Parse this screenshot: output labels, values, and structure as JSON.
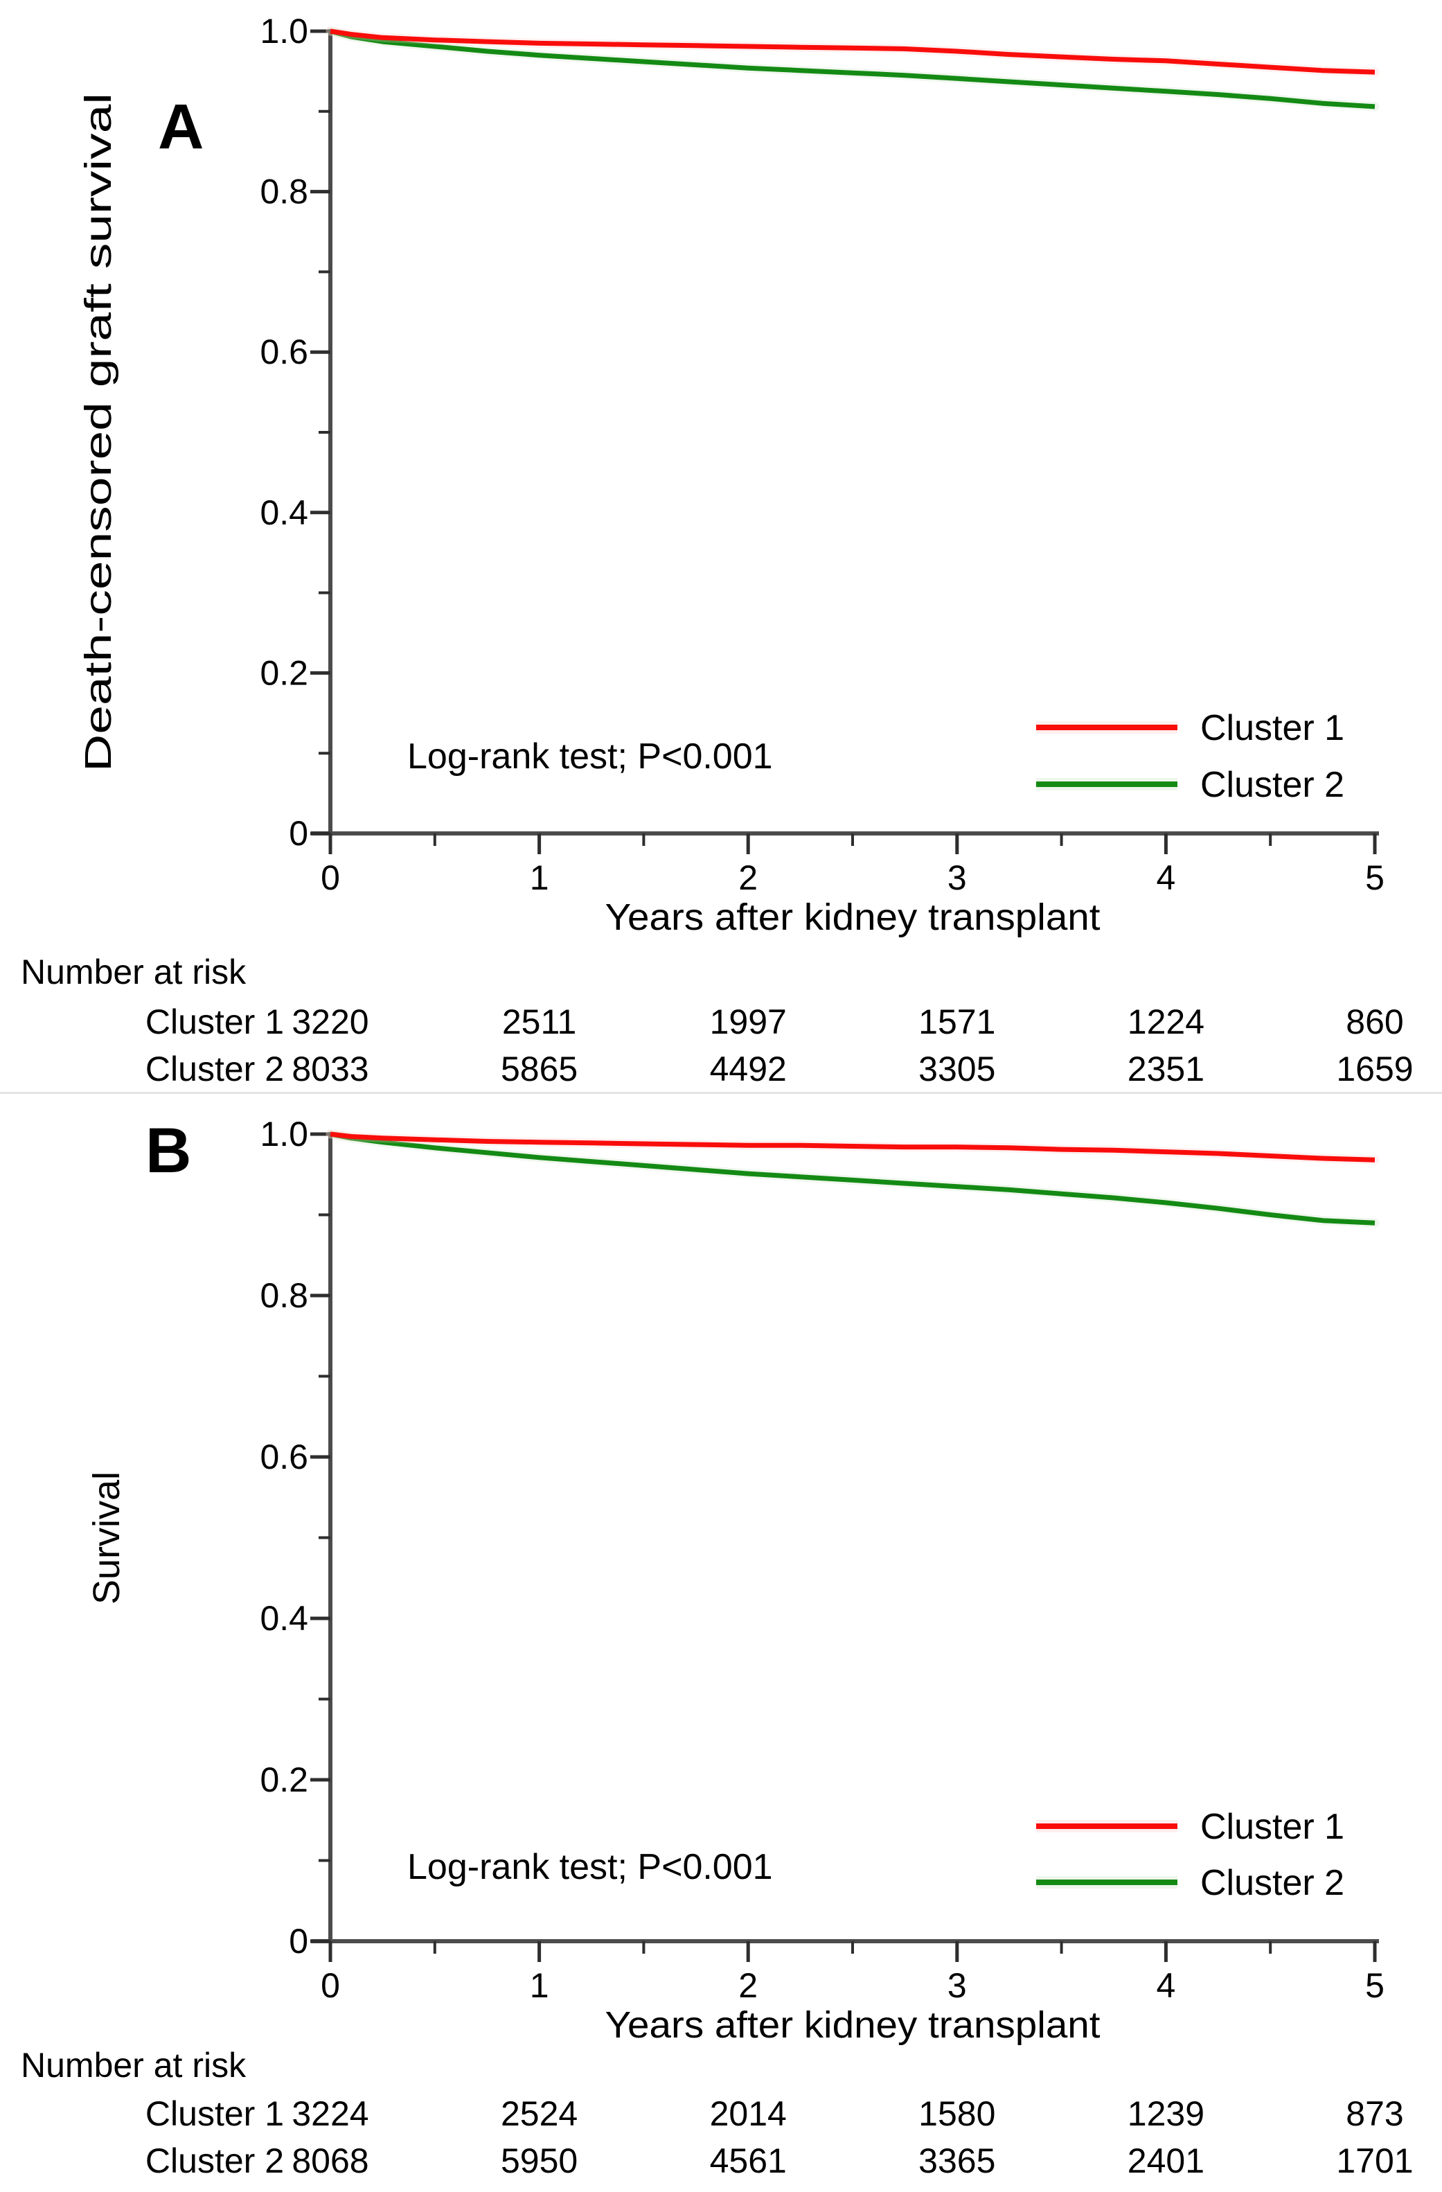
{
  "figure_type": "kaplan-meier-survival-figure",
  "chart_data": [
    {
      "type": "line",
      "panel_label": "A",
      "title": "",
      "xlabel": "Years after kidney transplant",
      "ylabel": "Death-censored graft survival",
      "annotation": "Log-rank test; P<0.001",
      "xlim": [
        0,
        5
      ],
      "ylim": [
        0,
        1
      ],
      "x_ticks": [
        0,
        1,
        2,
        3,
        4,
        5
      ],
      "x_tick_labels": [
        "0",
        "1",
        "2",
        "3",
        "4",
        "5"
      ],
      "y_ticks": [
        1.0,
        0.8,
        0.6,
        0.4,
        0.2,
        0
      ],
      "y_tick_labels": [
        "1.0",
        "0.8",
        "0.6",
        "0.4",
        "0.2",
        "0"
      ],
      "grid": false,
      "legend_position": "lower-right",
      "series": [
        {
          "name": "Cluster 1",
          "color": "#f90d0b",
          "halo": "#ffc6c6",
          "x": [
            0,
            0.1,
            0.25,
            0.5,
            0.75,
            1,
            1.25,
            1.5,
            1.75,
            2,
            2.25,
            2.5,
            2.75,
            3,
            3.25,
            3.5,
            3.75,
            4,
            4.25,
            4.5,
            4.75,
            5
          ],
          "y": [
            1.0,
            0.996,
            0.992,
            0.989,
            0.987,
            0.985,
            0.984,
            0.983,
            0.982,
            0.981,
            0.98,
            0.979,
            0.978,
            0.975,
            0.971,
            0.968,
            0.965,
            0.963,
            0.959,
            0.955,
            0.951,
            0.949
          ]
        },
        {
          "name": "Cluster 2",
          "color": "#148a14",
          "halo": "#c2e0ba",
          "x": [
            0,
            0.1,
            0.25,
            0.5,
            0.75,
            1,
            1.25,
            1.5,
            1.75,
            2,
            2.25,
            2.5,
            2.75,
            3,
            3.25,
            3.5,
            3.75,
            4,
            4.25,
            4.5,
            4.75,
            5
          ],
          "y": [
            1.0,
            0.993,
            0.987,
            0.981,
            0.975,
            0.97,
            0.966,
            0.962,
            0.958,
            0.954,
            0.951,
            0.948,
            0.945,
            0.941,
            0.937,
            0.933,
            0.929,
            0.925,
            0.921,
            0.916,
            0.91,
            0.906
          ]
        }
      ],
      "number_at_risk": {
        "title": "Number at risk",
        "time_points": [
          0,
          1,
          2,
          3,
          4,
          5
        ],
        "rows": [
          {
            "label": "Cluster 1",
            "values": [
              3220,
              2511,
              1997,
              1571,
              1224,
              860
            ]
          },
          {
            "label": "Cluster 2",
            "values": [
              8033,
              5865,
              4492,
              3305,
              2351,
              1659
            ]
          }
        ]
      }
    },
    {
      "type": "line",
      "panel_label": "B",
      "title": "",
      "xlabel": "Years after kidney transplant",
      "ylabel": "Survival",
      "annotation": "Log-rank test; P<0.001",
      "xlim": [
        0,
        5
      ],
      "ylim": [
        0,
        1
      ],
      "x_ticks": [
        0,
        1,
        2,
        3,
        4,
        5
      ],
      "x_tick_labels": [
        "0",
        "1",
        "2",
        "3",
        "4",
        "5"
      ],
      "y_ticks": [
        1.0,
        0.8,
        0.6,
        0.4,
        0.2,
        0
      ],
      "y_tick_labels": [
        "1.0",
        "0.8",
        "0.6",
        "0.4",
        "0.2",
        "0"
      ],
      "grid": false,
      "legend_position": "lower-right",
      "series": [
        {
          "name": "Cluster 1",
          "color": "#f90d0b",
          "halo": "#ffc6c6",
          "x": [
            0,
            0.1,
            0.25,
            0.5,
            0.75,
            1,
            1.25,
            1.5,
            1.75,
            2,
            2.25,
            2.5,
            2.75,
            3,
            3.25,
            3.5,
            3.75,
            4,
            4.25,
            4.5,
            4.75,
            5
          ],
          "y": [
            1.0,
            0.997,
            0.995,
            0.993,
            0.991,
            0.99,
            0.989,
            0.988,
            0.987,
            0.986,
            0.986,
            0.985,
            0.984,
            0.984,
            0.983,
            0.981,
            0.98,
            0.978,
            0.976,
            0.973,
            0.97,
            0.968
          ]
        },
        {
          "name": "Cluster 2",
          "color": "#148a14",
          "halo": "#c2e0ba",
          "x": [
            0,
            0.1,
            0.25,
            0.5,
            0.75,
            1,
            1.25,
            1.5,
            1.75,
            2,
            2.25,
            2.5,
            2.75,
            3,
            3.25,
            3.5,
            3.75,
            4,
            4.25,
            4.5,
            4.75,
            5
          ],
          "y": [
            1.0,
            0.995,
            0.99,
            0.983,
            0.977,
            0.971,
            0.966,
            0.961,
            0.956,
            0.951,
            0.947,
            0.943,
            0.939,
            0.935,
            0.931,
            0.926,
            0.921,
            0.915,
            0.908,
            0.9,
            0.893,
            0.89
          ]
        }
      ],
      "number_at_risk": {
        "title": "Number at risk",
        "time_points": [
          0,
          1,
          2,
          3,
          4,
          5
        ],
        "rows": [
          {
            "label": "Cluster 1",
            "values": [
              3224,
              2524,
              2014,
              1580,
              1239,
              873
            ]
          },
          {
            "label": "Cluster 2",
            "values": [
              8068,
              5950,
              4561,
              3365,
              2401,
              1701
            ]
          }
        ]
      }
    }
  ]
}
